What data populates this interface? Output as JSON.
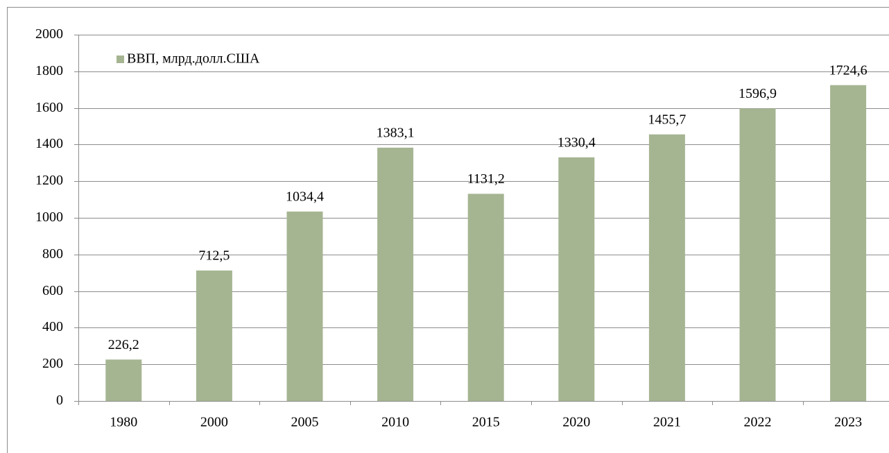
{
  "chart_data": {
    "type": "bar",
    "categories": [
      "1980",
      "2000",
      "2005",
      "2010",
      "2015",
      "2020",
      "2021",
      "2022",
      "2023"
    ],
    "series": [
      {
        "name": "ВВП, млрд.долл.США",
        "color": "#a5b592",
        "values": [
          226.2,
          712.5,
          1034.4,
          1383.1,
          1131.2,
          1330.4,
          1455.7,
          1596.9,
          1724.6
        ],
        "value_labels": [
          "226,2",
          "712,5",
          "1034,4",
          "1383,1",
          "1131,2",
          "1330,4",
          "1455,7",
          "1596,9",
          "1724,6"
        ]
      }
    ],
    "ylim": [
      0,
      2000
    ],
    "yticks": [
      0,
      200,
      400,
      600,
      800,
      1000,
      1200,
      1400,
      1600,
      1800,
      2000
    ],
    "grid": true,
    "legend": "top-left"
  }
}
